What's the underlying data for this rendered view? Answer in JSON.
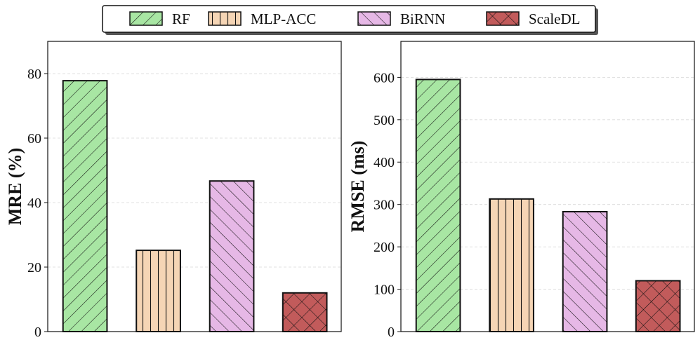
{
  "legend": {
    "entries": [
      {
        "label": "RF",
        "color": "#a8e6a3",
        "hatch": "diag-up"
      },
      {
        "label": "MLP-ACC",
        "color": "#f5d5b5",
        "hatch": "vertical"
      },
      {
        "label": "BiRNN",
        "color": "#e6b8e6",
        "hatch": "diag-down"
      },
      {
        "label": "ScaleDL",
        "color": "#c25b5b",
        "hatch": "cross"
      }
    ]
  },
  "chart_data": [
    {
      "type": "bar",
      "categories": [
        "RF",
        "MLP-ACC",
        "BiRNN",
        "ScaleDL"
      ],
      "values": [
        77.8,
        25.2,
        46.7,
        12.0
      ],
      "title": "",
      "xlabel": "",
      "ylabel": "MRE (%)",
      "ylim": [
        0,
        90
      ],
      "yticks": [
        0,
        20,
        40,
        60,
        80
      ],
      "grid": true
    },
    {
      "type": "bar",
      "categories": [
        "RF",
        "MLP-ACC",
        "BiRNN",
        "ScaleDL"
      ],
      "values": [
        595,
        313,
        283,
        120
      ],
      "title": "",
      "xlabel": "",
      "ylabel": "RMSE (ms)",
      "ylim": [
        0,
        685
      ],
      "yticks": [
        0,
        100,
        200,
        300,
        400,
        500,
        600
      ],
      "grid": true
    }
  ]
}
